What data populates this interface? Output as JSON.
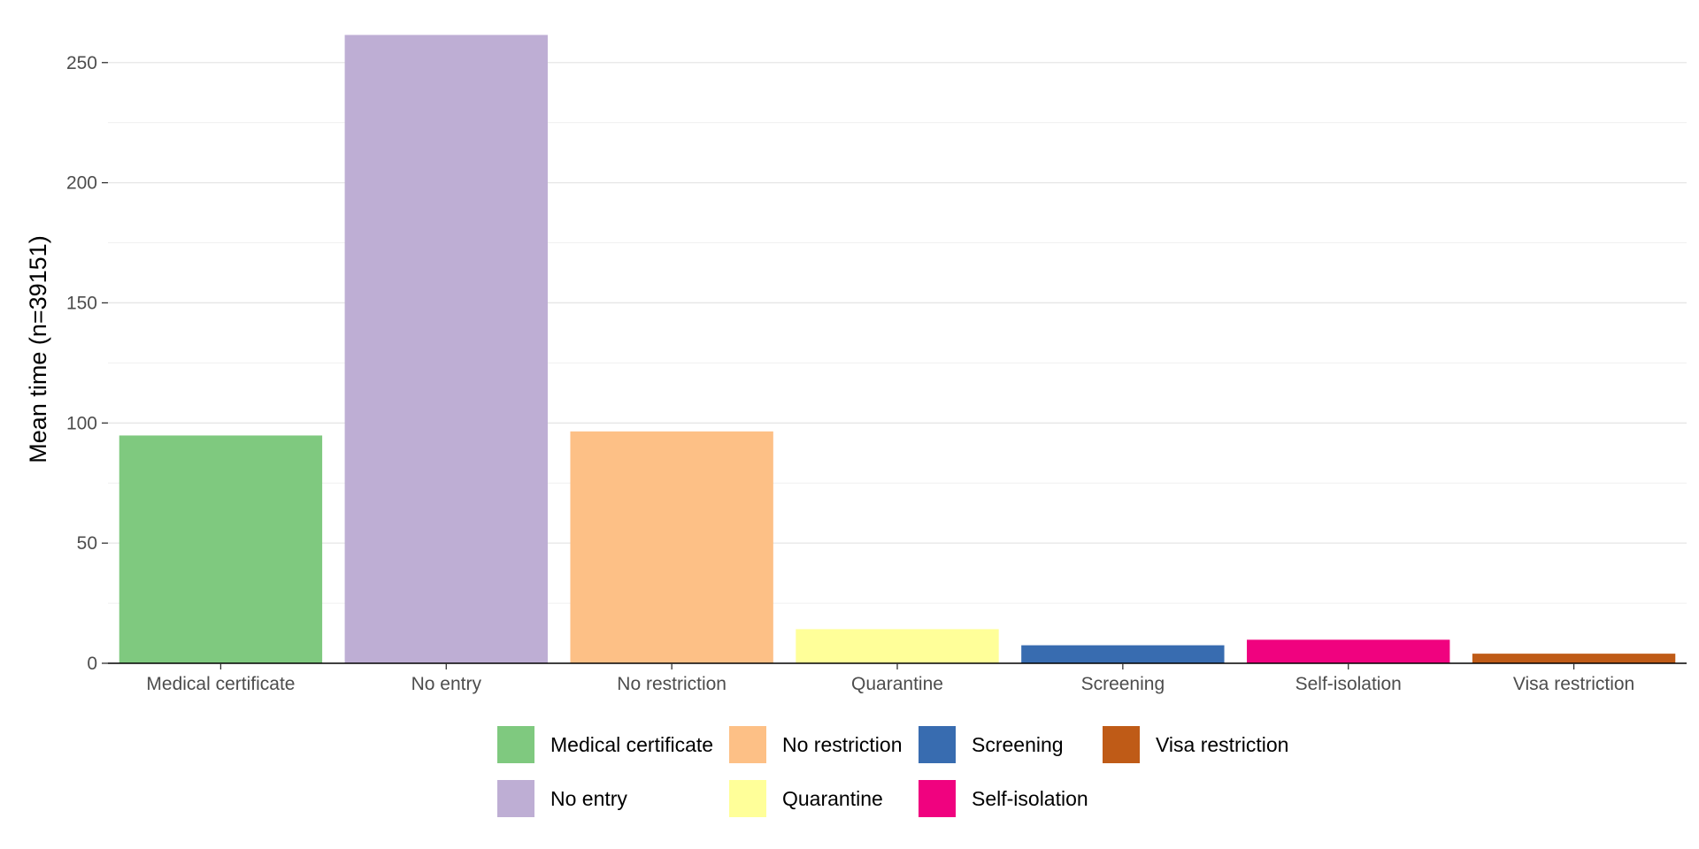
{
  "chart_data": {
    "type": "bar",
    "title": "",
    "xlabel": "",
    "ylabel": "Mean time (n=39151)",
    "categories": [
      "Medical certificate",
      "No entry",
      "No restriction",
      "Quarantine",
      "Screening",
      "Self-isolation",
      "Visa restriction"
    ],
    "values": [
      94.8,
      261.5,
      96.5,
      14.2,
      7.5,
      9.8,
      4.0
    ],
    "colors": [
      "#7fc97f",
      "#beaed4",
      "#fdc086",
      "#ffff99",
      "#386cb0",
      "#f0027f",
      "#bf5b17"
    ],
    "ylim": [
      0,
      265
    ],
    "yticks": [
      0,
      50,
      100,
      150,
      200,
      250
    ],
    "grid": true,
    "legend_position": "bottom",
    "legend": [
      {
        "label": "Medical certificate",
        "color": "#7fc97f"
      },
      {
        "label": "No entry",
        "color": "#beaed4"
      },
      {
        "label": "No restriction",
        "color": "#fdc086"
      },
      {
        "label": "Quarantine",
        "color": "#ffff99"
      },
      {
        "label": "Screening",
        "color": "#386cb0"
      },
      {
        "label": "Self-isolation",
        "color": "#f0027f"
      },
      {
        "label": "Visa restriction",
        "color": "#bf5b17"
      }
    ]
  }
}
